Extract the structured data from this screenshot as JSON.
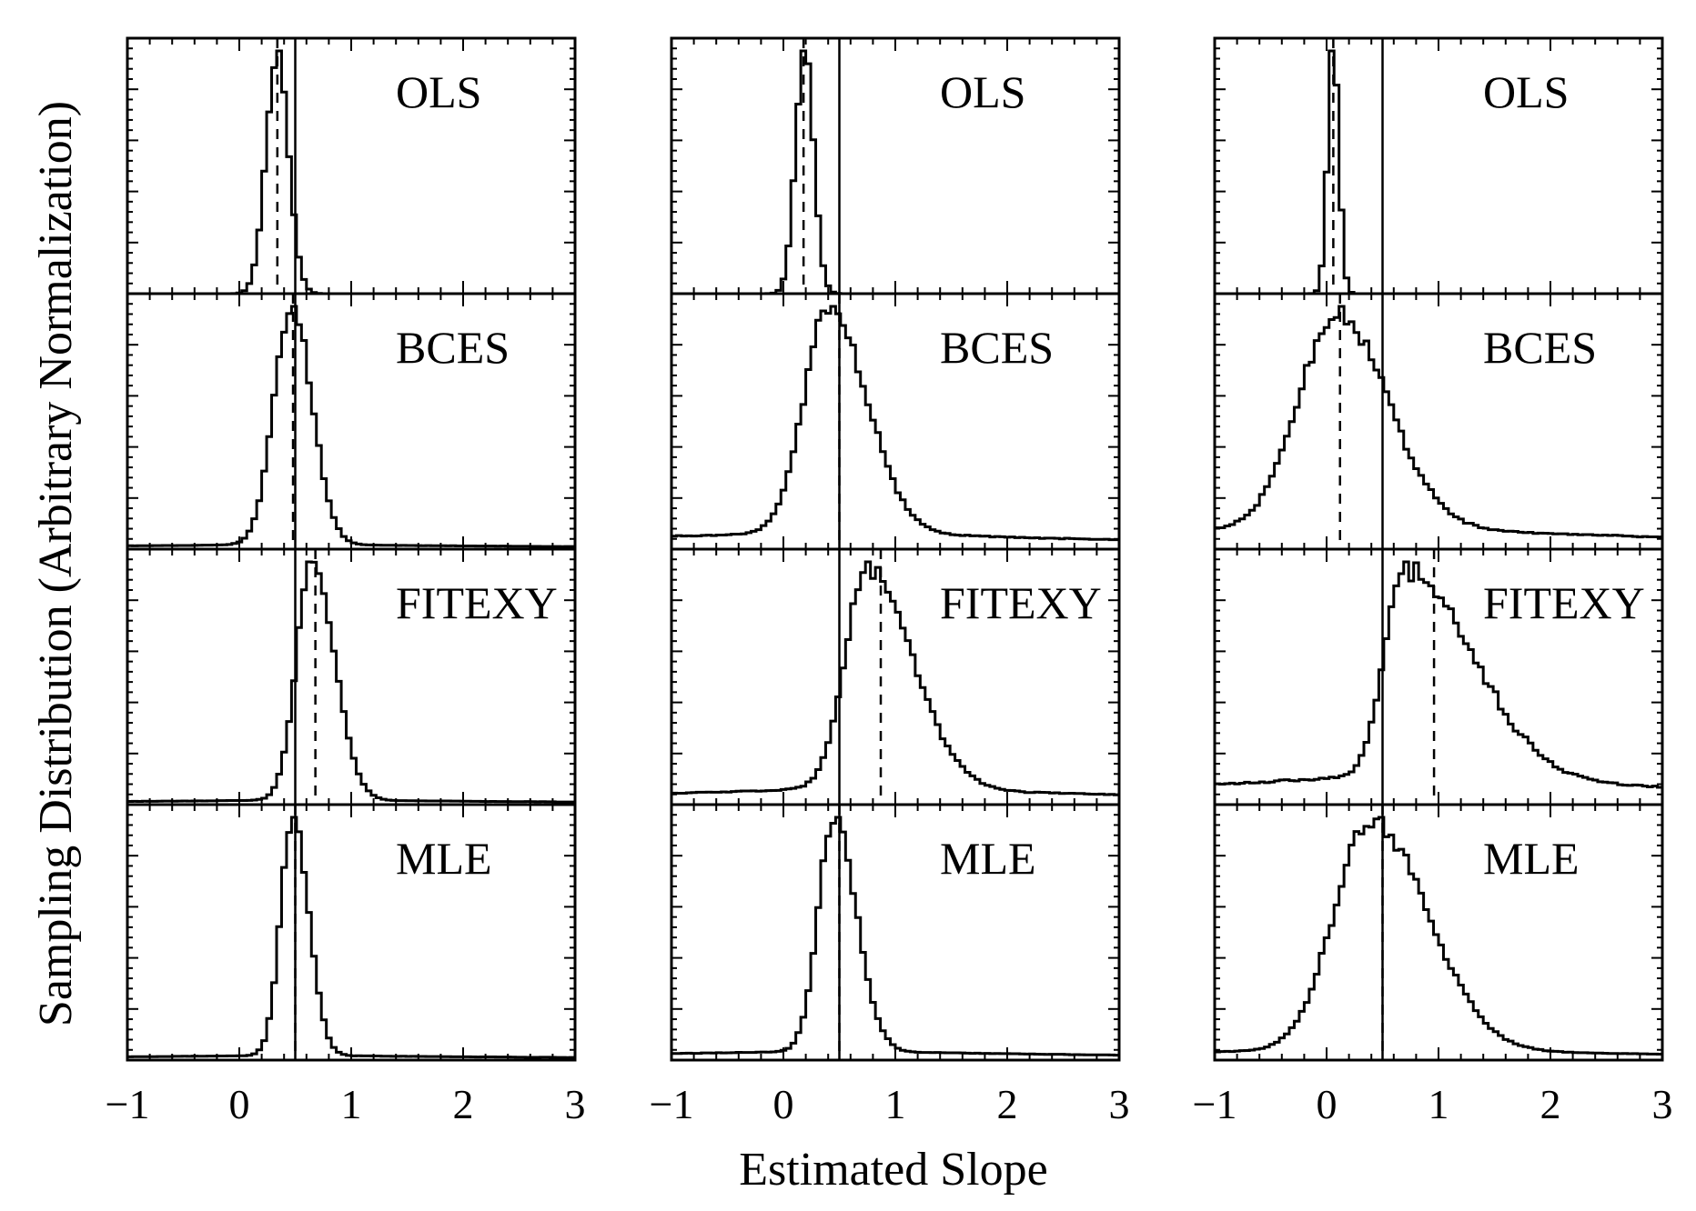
{
  "figure": {
    "xlabel": "Estimated Slope",
    "ylabel": "Sampling Distribution (Arbitrary Normalization)",
    "x_tick_labels": [
      "−1",
      "0",
      "1",
      "2",
      "3"
    ]
  },
  "chart_data": {
    "type": "histogram",
    "xlabel": "Estimated Slope",
    "ylabel": "Sampling Distribution (Arbitrary Normalization)",
    "xlim": [
      -1,
      3
    ],
    "x_ticks": [
      -1,
      0,
      1,
      2,
      3
    ],
    "true_slope": 0.5,
    "line_styles": {
      "true_slope": "solid",
      "mean_estimate": "dashed"
    },
    "columns": [
      {
        "title": "",
        "panels": [
          {
            "label": "OLS",
            "mean": 0.34,
            "shape": [
              0.34,
              0.1,
              0.1,
              0,
              0
            ]
          },
          {
            "label": "BCES",
            "mean": 0.48,
            "shape": [
              0.47,
              0.16,
              0.18,
              0.02,
              0
            ]
          },
          {
            "label": "FITEXY",
            "mean": 0.68,
            "shape": [
              0.65,
              0.14,
              0.2,
              0.02,
              0
            ]
          },
          {
            "label": "MLE",
            "mean": 0.5,
            "shape": [
              0.48,
              0.11,
              0.14,
              0.02,
              0
            ]
          }
        ]
      },
      {
        "title": "",
        "panels": [
          {
            "label": "OLS",
            "mean": 0.18,
            "shape": [
              0.19,
              0.08,
              0.08,
              0,
              0
            ]
          },
          {
            "label": "BCES",
            "mean": 0.5,
            "shape": [
              0.4,
              0.22,
              0.34,
              0.08,
              0.015
            ]
          },
          {
            "label": "FITEXY",
            "mean": 0.87,
            "shape": [
              0.75,
              0.2,
              0.4,
              0.08,
              0.01
            ]
          },
          {
            "label": "MLE",
            "mean": 0.5,
            "shape": [
              0.45,
              0.14,
              0.2,
              0.04,
              0
            ]
          }
        ]
      },
      {
        "title": "",
        "panels": [
          {
            "label": "OLS",
            "mean": 0.06,
            "shape": [
              0.06,
              0.05,
              0.05,
              0,
              0
            ]
          },
          {
            "label": "BCES",
            "mean": 0.12,
            "shape": [
              0.1,
              0.35,
              0.45,
              0.12,
              0.015
            ]
          },
          {
            "label": "FITEXY",
            "mean": 0.96,
            "shape": [
              0.7,
              0.18,
              0.6,
              0.15,
              0.02
            ]
          },
          {
            "label": "MLE",
            "mean": 0.5,
            "shape": [
              0.4,
              0.33,
              0.5,
              0.05,
              0.01
            ]
          }
        ]
      }
    ]
  }
}
